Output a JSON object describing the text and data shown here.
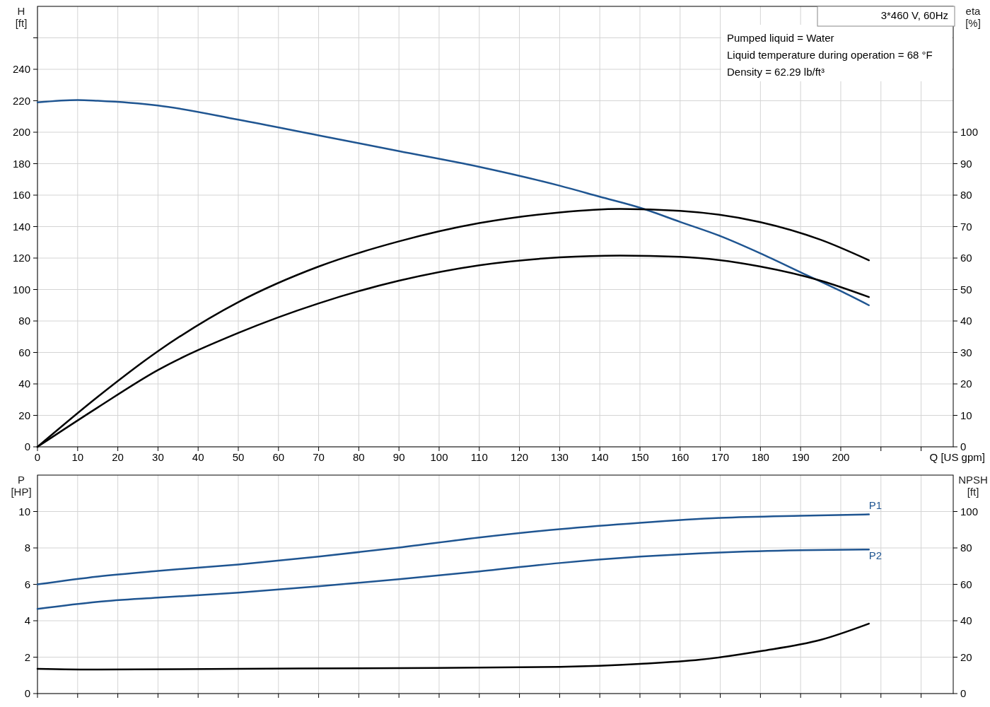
{
  "chart_data": [
    {
      "type": "line",
      "title": "3*460 V, 60Hz",
      "xlabel": "Q [US gpm]",
      "ylabel": "H [ft]",
      "y2label": "eta [%]",
      "grid": true,
      "annotations": [
        "Pumped liquid = Water",
        "Liquid temperature during operation = 68 °F",
        "Density = 62.29 lb/ft³"
      ],
      "xlim": [
        0,
        228
      ],
      "xticks": [
        0,
        10,
        20,
        30,
        40,
        50,
        60,
        70,
        80,
        90,
        100,
        110,
        120,
        130,
        140,
        150,
        160,
        170,
        180,
        190,
        200,
        {
          "value": 210,
          "label": null
        },
        {
          "value": 220,
          "label": null
        }
      ],
      "ylim": [
        0,
        280
      ],
      "yticks": [
        0,
        20,
        40,
        60,
        80,
        100,
        120,
        140,
        160,
        180,
        200,
        220,
        240,
        {
          "value": 260,
          "label": null
        }
      ],
      "y2lim": [
        0,
        140
      ],
      "y2ticks": [
        0,
        10,
        20,
        30,
        40,
        50,
        60,
        70,
        80,
        90,
        100
      ],
      "series": [
        {
          "color": "#1f5591",
          "x": [
            0,
            10,
            15,
            30,
            50,
            70,
            90,
            110,
            130,
            140,
            150,
            160,
            170,
            180,
            190,
            200,
            207
          ],
          "values": [
            219,
            220.5,
            220,
            217,
            208,
            198,
            188,
            178,
            166,
            159,
            152,
            143,
            134,
            123,
            111,
            99,
            90
          ]
        },
        {
          "color": "#000000",
          "axis": "y2",
          "x": [
            0,
            15,
            30,
            50,
            70,
            90,
            110,
            130,
            145,
            160,
            180,
            195,
            207
          ],
          "values": [
            0,
            15.9,
            30.4,
            46,
            57.3,
            65.3,
            71.1,
            74.5,
            75.6,
            75,
            71.4,
            65.8,
            59.3
          ]
        },
        {
          "color": "#000000",
          "axis": "y2",
          "x": [
            0,
            15,
            30,
            50,
            70,
            90,
            110,
            130,
            145,
            160,
            180,
            195,
            207
          ],
          "values": [
            0,
            12.5,
            24.4,
            36.2,
            45.6,
            52.8,
            57.7,
            60.2,
            60.8,
            60.4,
            57.3,
            52.8,
            47.6
          ]
        }
      ]
    },
    {
      "type": "line",
      "ylabel": "P [HP]",
      "y2label": "NPSH [ft]",
      "grid": true,
      "tick_labels": "y",
      "xlim": [
        0,
        228
      ],
      "xticks": [
        0,
        10,
        20,
        30,
        40,
        50,
        60,
        70,
        80,
        90,
        100,
        110,
        120,
        130,
        140,
        150,
        160,
        170,
        180,
        190,
        200,
        210,
        220
      ],
      "ylim": [
        0,
        12
      ],
      "yticks": [
        0,
        2,
        4,
        6,
        8,
        10
      ],
      "y2lim": [
        0,
        120
      ],
      "y2ticks": [
        0,
        20,
        40,
        60,
        80,
        100
      ],
      "series": [
        {
          "name": "P1",
          "color": "#1f5591",
          "x": [
            0,
            15,
            30,
            50,
            70,
            90,
            110,
            130,
            150,
            170,
            190,
            207
          ],
          "values": [
            6.0,
            6.43,
            6.74,
            7.09,
            7.52,
            8.02,
            8.57,
            9.03,
            9.38,
            9.65,
            9.77,
            9.84
          ]
        },
        {
          "name": "P2",
          "color": "#1f5591",
          "x": [
            0,
            15,
            30,
            50,
            70,
            90,
            110,
            130,
            150,
            170,
            190,
            207
          ],
          "values": [
            4.65,
            5.04,
            5.27,
            5.54,
            5.89,
            6.28,
            6.71,
            7.17,
            7.52,
            7.75,
            7.87,
            7.91
          ]
        },
        {
          "color": "#000000",
          "axis": "y2",
          "x": [
            0,
            15,
            50,
            90,
            130,
            150,
            165,
            180,
            195,
            207
          ],
          "values": [
            13.6,
            13.2,
            13.6,
            14,
            14.7,
            16.3,
            18.6,
            23.3,
            29.5,
            38.4
          ]
        }
      ]
    }
  ]
}
